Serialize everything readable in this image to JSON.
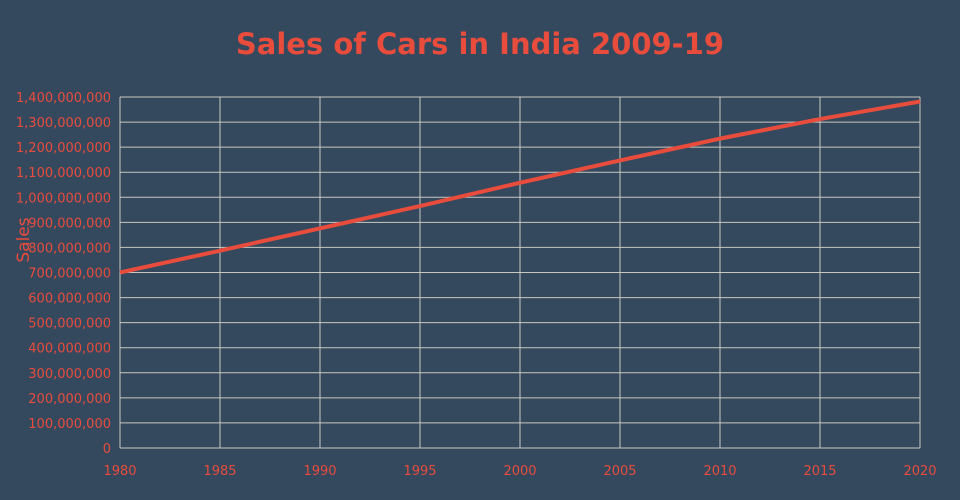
{
  "chart_data": {
    "type": "line",
    "title": "Sales of Cars in India 2009-19",
    "xlabel": "",
    "ylabel": "Sales",
    "xlim": [
      1980,
      2020
    ],
    "ylim": [
      0,
      1400000000
    ],
    "grid": true,
    "x_ticks": [
      "1980",
      "1985",
      "1990",
      "1995",
      "2000",
      "2005",
      "2010",
      "2015",
      "2020"
    ],
    "y_ticks": [
      "0",
      "100,000,000",
      "200,000,000",
      "300,000,000",
      "400,000,000",
      "500,000,000",
      "600,000,000",
      "700,000,000",
      "800,000,000",
      "900,000,000",
      "1,000,000,000",
      "1,100,000,000",
      "1,200,000,000",
      "1,300,000,000",
      "1,400,000,000"
    ],
    "series": [
      {
        "name": "Sales",
        "color": "#e74c3c",
        "x": [
          1980,
          1985,
          1990,
          1995,
          2000,
          2005,
          2010,
          2015,
          2020
        ],
        "y": [
          700000000,
          787000000,
          876000000,
          965000000,
          1058000000,
          1147000000,
          1234000000,
          1312000000,
          1382000000
        ]
      }
    ]
  }
}
